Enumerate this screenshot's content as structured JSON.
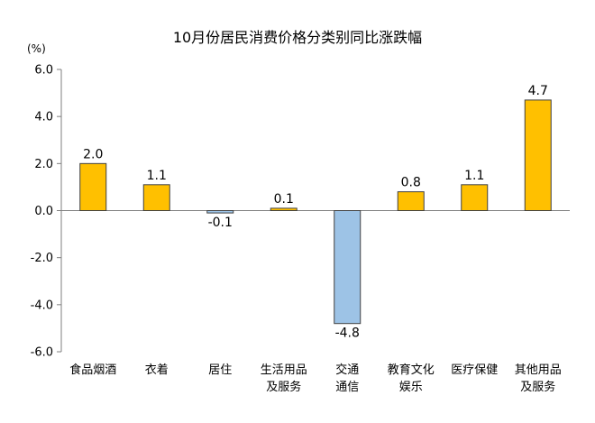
{
  "chart_data": {
    "type": "bar",
    "title": "10月份居民消费价格分类别同比涨跌幅",
    "unit_label": "(%)",
    "ylim": [
      -6.0,
      6.0
    ],
    "yticks": [
      "6.0",
      "4.0",
      "2.0",
      "0.0",
      "-2.0",
      "-4.0",
      "-6.0"
    ],
    "grid": false,
    "legend": "none",
    "categories": [
      [
        "食品烟酒"
      ],
      [
        "衣着"
      ],
      [
        "居住"
      ],
      [
        "生活用品",
        "及服务"
      ],
      [
        "交通",
        "通信"
      ],
      [
        "教育文化",
        "娱乐"
      ],
      [
        "医疗保健"
      ],
      [
        "其他用品",
        "及服务"
      ]
    ],
    "values": [
      2.0,
      1.1,
      -0.1,
      0.1,
      -4.8,
      0.8,
      1.1,
      4.7
    ],
    "value_labels": [
      "2.0",
      "1.1",
      "-0.1",
      "0.1",
      "-4.8",
      "0.8",
      "1.1",
      "4.7"
    ],
    "colors": {
      "positive": "#FFC000",
      "negative": "#9DC3E6",
      "border": "#404040",
      "axis": "#7F7F7F"
    }
  }
}
